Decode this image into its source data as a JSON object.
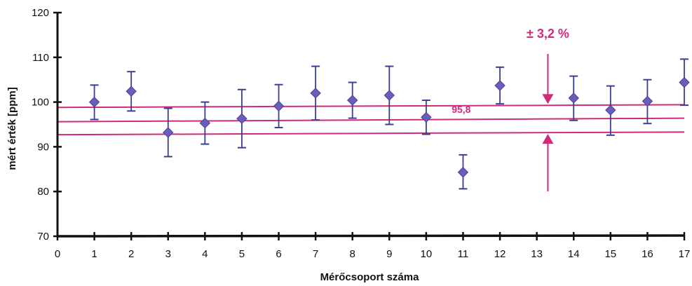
{
  "chart_data": {
    "type": "scatter",
    "xlabel": "Mérőcsoport száma",
    "ylabel": "mért érték [ppm]",
    "xlim": [
      0,
      17
    ],
    "ylim": [
      70,
      120
    ],
    "x_ticks": [
      "0",
      "1",
      "2",
      "3",
      "4",
      "5",
      "6",
      "7",
      "8",
      "9",
      "10",
      "11",
      "12",
      "13",
      "14",
      "15",
      "16",
      "17"
    ],
    "y_ticks": [
      "70",
      "80",
      "90",
      "100",
      "110",
      "120"
    ],
    "grid": false,
    "legend": "none",
    "points": [
      {
        "x": 1,
        "y": 100.0,
        "low": 96.1,
        "high": 103.8
      },
      {
        "x": 2,
        "y": 102.4,
        "low": 98.0,
        "high": 106.8
      },
      {
        "x": 3,
        "y": 93.2,
        "low": 87.8,
        "high": 98.6
      },
      {
        "x": 4,
        "y": 95.3,
        "low": 90.6,
        "high": 100.0
      },
      {
        "x": 5,
        "y": 96.3,
        "low": 89.8,
        "high": 102.8
      },
      {
        "x": 6,
        "y": 99.1,
        "low": 94.3,
        "high": 103.9
      },
      {
        "x": 7,
        "y": 102.0,
        "low": 96.0,
        "high": 108.0
      },
      {
        "x": 8,
        "y": 100.4,
        "low": 96.4,
        "high": 104.4
      },
      {
        "x": 9,
        "y": 101.5,
        "low": 95.0,
        "high": 108.0
      },
      {
        "x": 10,
        "y": 96.6,
        "low": 92.8,
        "high": 100.4
      },
      {
        "x": 11,
        "y": 84.3,
        "low": 80.6,
        "high": 88.2
      },
      {
        "x": 12,
        "y": 103.7,
        "low": 99.6,
        "high": 107.8
      },
      {
        "x": 14,
        "y": 100.9,
        "low": 95.9,
        "high": 105.8
      },
      {
        "x": 15,
        "y": 98.2,
        "low": 92.6,
        "high": 103.6
      },
      {
        "x": 16,
        "y": 100.2,
        "low": 95.2,
        "high": 105.0
      },
      {
        "x": 17,
        "y": 104.4,
        "low": 99.3,
        "high": 109.6
      }
    ],
    "reference_lines": [
      {
        "kind": "upper",
        "y_start": 98.8,
        "y_end": 99.4
      },
      {
        "kind": "mean",
        "y_start": 95.6,
        "y_end": 96.4
      },
      {
        "kind": "lower",
        "y_start": 92.7,
        "y_end": 93.3
      }
    ],
    "mean_label": "95,8",
    "tolerance_label": "± 3,2 %",
    "tolerance_arrow_x": 13.3,
    "colors": {
      "marker": "#6a5fb8",
      "errorbar": "#3b3f8f",
      "reference": "#d12a78",
      "axis": "#111111"
    }
  }
}
